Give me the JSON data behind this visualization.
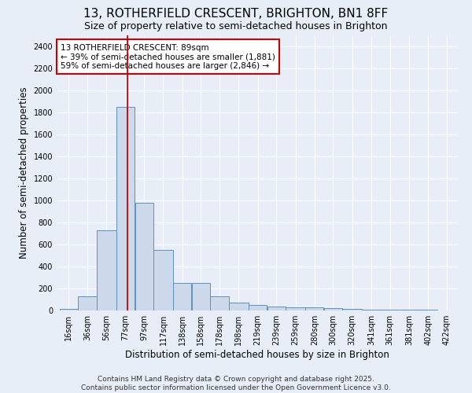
{
  "title_line1": "13, ROTHERFIELD CRESCENT, BRIGHTON, BN1 8FF",
  "title_line2": "Size of property relative to semi-detached houses in Brighton",
  "xlabel": "Distribution of semi-detached houses by size in Brighton",
  "ylabel": "Number of semi-detached properties",
  "bar_color": "#ccd9ea",
  "bar_edge_color": "#6090c0",
  "bg_color": "#e8eef8",
  "grid_color": "#ffffff",
  "categories": [
    "16sqm",
    "36sqm",
    "56sqm",
    "77sqm",
    "97sqm",
    "117sqm",
    "138sqm",
    "158sqm",
    "178sqm",
    "198sqm",
    "219sqm",
    "239sqm",
    "259sqm",
    "280sqm",
    "300sqm",
    "320sqm",
    "341sqm",
    "361sqm",
    "381sqm",
    "402sqm",
    "422sqm"
  ],
  "bin_edges": [
    16,
    36,
    56,
    77,
    97,
    117,
    138,
    158,
    178,
    198,
    219,
    239,
    259,
    280,
    300,
    320,
    341,
    361,
    381,
    402,
    422
  ],
  "bar_heights": [
    15,
    130,
    730,
    1850,
    980,
    550,
    248,
    248,
    130,
    70,
    48,
    35,
    30,
    28,
    20,
    12,
    10,
    8,
    5,
    5,
    2
  ],
  "property_size": 89,
  "vline_x": 89,
  "vline_color": "#cc0000",
  "annotation_title": "13 ROTHERFIELD CRESCENT: 89sqm",
  "annotation_line1": "← 39% of semi-detached houses are smaller (1,881)",
  "annotation_line2": "59% of semi-detached houses are larger (2,846) →",
  "annotation_box_color": "#ffffff",
  "annotation_box_edge": "#cc0000",
  "ylim": [
    0,
    2500
  ],
  "yticks": [
    0,
    200,
    400,
    600,
    800,
    1000,
    1200,
    1400,
    1600,
    1800,
    2000,
    2200,
    2400
  ],
  "footer_line1": "Contains HM Land Registry data © Crown copyright and database right 2025.",
  "footer_line2": "Contains public sector information licensed under the Open Government Licence v3.0.",
  "title_fontsize": 11,
  "subtitle_fontsize": 9,
  "axis_label_fontsize": 8.5,
  "tick_fontsize": 7,
  "annotation_fontsize": 7.5,
  "footer_fontsize": 6.5
}
